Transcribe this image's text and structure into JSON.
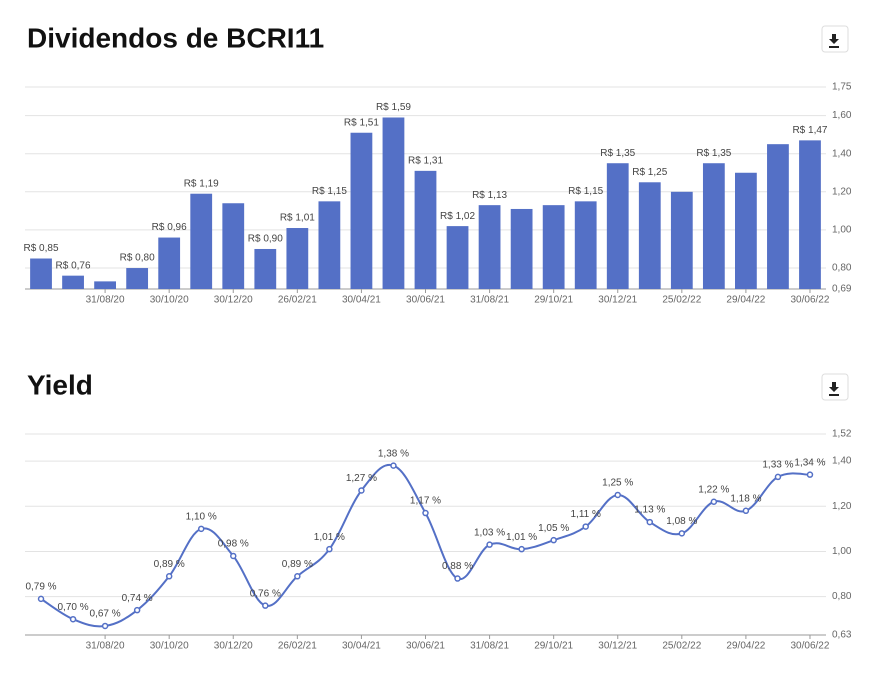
{
  "chart_data": [
    {
      "type": "bar",
      "title": "Dividendos de BCRI11",
      "color": "#5470c6",
      "categories": [
        null,
        null,
        "31/08/20",
        null,
        "30/10/20",
        null,
        "30/12/20",
        null,
        "26/02/21",
        null,
        "30/04/21",
        null,
        "30/06/21",
        null,
        "31/08/21",
        null,
        "29/10/21",
        null,
        "30/12/21",
        null,
        "25/02/22",
        null,
        "29/04/22",
        null,
        "30/06/22"
      ],
      "values": [
        0.85,
        0.76,
        0.73,
        0.8,
        0.96,
        1.19,
        1.14,
        0.9,
        1.01,
        1.15,
        1.51,
        1.59,
        1.31,
        1.02,
        1.13,
        1.11,
        1.13,
        1.15,
        1.35,
        1.25,
        1.2,
        1.35,
        1.3,
        1.45,
        1.47
      ],
      "value_labels": [
        "R$ 0,85",
        "R$ 0,76",
        null,
        "R$ 0,80",
        "R$ 0,96",
        "R$ 1,19",
        null,
        "R$ 0,90",
        "R$ 1,01",
        "R$ 1,15",
        "R$ 1,51",
        "R$ 1,59",
        "R$ 1,31",
        "R$ 1,02",
        "R$ 1,13",
        null,
        null,
        "R$ 1,15",
        "R$ 1,35",
        "R$ 1,25",
        null,
        "R$ 1,35",
        null,
        null,
        "R$ 1,47"
      ],
      "ylim": [
        0.69,
        1.75
      ],
      "yticks": [
        {
          "value": 0.69,
          "label": "0,69"
        },
        {
          "value": 0.8,
          "label": "0,80"
        },
        {
          "value": 1.0,
          "label": "1,00"
        },
        {
          "value": 1.2,
          "label": "1,20"
        },
        {
          "value": 1.4,
          "label": "1,40"
        },
        {
          "value": 1.6,
          "label": "1,60"
        },
        {
          "value": 1.75,
          "label": "1,75"
        }
      ],
      "grid": true
    },
    {
      "type": "line",
      "title": "Yield",
      "color": "#5470c6",
      "categories": [
        null,
        null,
        "31/08/20",
        null,
        "30/10/20",
        null,
        "30/12/20",
        null,
        "26/02/21",
        null,
        "30/04/21",
        null,
        "30/06/21",
        null,
        "31/08/21",
        null,
        "29/10/21",
        null,
        "30/12/21",
        null,
        "25/02/22",
        null,
        "29/04/22",
        null,
        "30/06/22"
      ],
      "values": [
        0.79,
        0.7,
        0.67,
        0.74,
        0.89,
        1.1,
        0.98,
        0.76,
        0.89,
        1.01,
        1.27,
        1.38,
        1.17,
        0.88,
        1.03,
        1.01,
        1.05,
        1.11,
        1.25,
        1.13,
        1.08,
        1.22,
        1.18,
        1.33,
        1.34
      ],
      "value_labels": [
        "0,79 %",
        "0,70 %",
        "0,67 %",
        "0,74 %",
        "0,89 %",
        "1,10 %",
        "0,98 %",
        "0,76 %",
        "0,89 %",
        "1,01 %",
        "1,27 %",
        "1,38 %",
        "1,17 %",
        "0,88 %",
        "1,03 %",
        "1,01 %",
        "1,05 %",
        "1,11 %",
        "1,25 %",
        "1,13 %",
        "1,08 %",
        "1,22 %",
        "1,18 %",
        "1,33 %",
        "1,34 %"
      ],
      "ylim": [
        0.63,
        1.52
      ],
      "yticks": [
        {
          "value": 0.63,
          "label": "0,63"
        },
        {
          "value": 0.8,
          "label": "0,80"
        },
        {
          "value": 1.0,
          "label": "1,00"
        },
        {
          "value": 1.2,
          "label": "1,20"
        },
        {
          "value": 1.4,
          "label": "1,40"
        },
        {
          "value": 1.52,
          "label": "1,52"
        }
      ],
      "grid": true
    }
  ]
}
